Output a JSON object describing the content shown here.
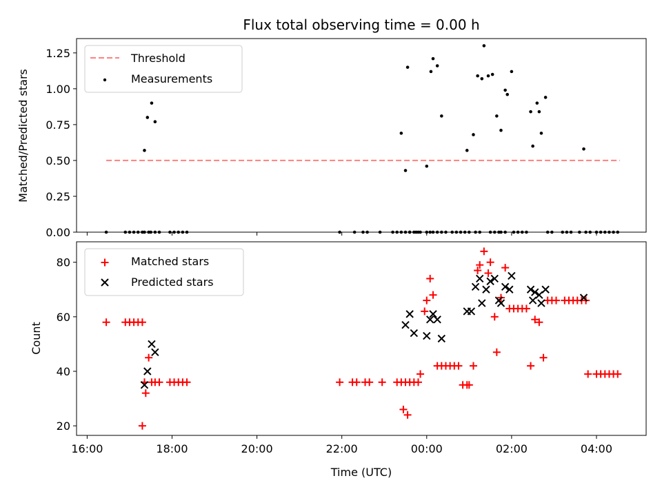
{
  "chart_data": [
    {
      "type": "scatter",
      "title": "Flux total observing time = 0.00 h",
      "xlabel": "",
      "ylabel": "Matched/Predicted stars",
      "xlim": [
        15.75,
        29.17
      ],
      "ylim": [
        0.0,
        1.35
      ],
      "yticks": [
        0.0,
        0.25,
        0.5,
        0.75,
        1.0,
        1.25
      ],
      "ytick_labels": [
        "0.00",
        "0.25",
        "0.50",
        "0.75",
        "1.00",
        "1.25"
      ],
      "xticks": [
        16,
        18,
        20,
        22,
        24,
        26,
        28
      ],
      "xtick_labels": [
        "",
        "",
        "",
        "",
        "",
        "",
        ""
      ],
      "legend_position": "top-left",
      "series": [
        {
          "name": "Threshold",
          "kind": "line",
          "color": "#ff7f7f",
          "style": "dashed",
          "x": [
            16.45,
            28.55
          ],
          "y": [
            0.5,
            0.5
          ]
        },
        {
          "name": "Measurements",
          "kind": "scatter",
          "color": "#000000",
          "marker": "dot",
          "x": [
            16.45,
            16.9,
            17.0,
            17.1,
            17.2,
            17.3,
            17.35,
            17.45,
            17.5,
            17.6,
            17.7,
            17.95,
            18.05,
            18.15,
            18.25,
            18.35,
            21.95,
            22.3,
            22.5,
            22.6,
            22.9,
            23.2,
            23.3,
            23.4,
            23.5,
            23.6,
            23.75,
            23.85,
            23.6,
            23.7,
            23.8,
            24.0,
            24.08,
            24.15,
            24.25,
            24.35,
            24.45,
            24.6,
            24.7,
            24.8,
            24.9,
            25.0,
            25.15,
            25.25,
            25.5,
            25.6,
            25.7,
            25.75,
            25.85,
            26.05,
            26.15,
            26.25,
            26.35,
            26.85,
            26.95,
            27.2,
            27.3,
            27.4,
            27.6,
            27.75,
            27.85,
            28.0,
            28.1,
            28.2,
            28.3,
            28.4,
            28.5,
            23.4,
            23.5,
            23.55,
            24.0,
            24.1,
            24.15,
            24.25,
            24.35,
            24.95,
            25.1,
            25.2,
            25.3,
            25.35,
            25.45,
            25.55,
            25.65,
            25.75,
            25.85,
            25.9,
            26.0,
            26.45,
            26.5,
            26.6,
            26.65,
            26.7,
            26.8,
            17.35,
            17.42,
            17.52,
            17.6,
            27.7
          ],
          "y": [
            0,
            0,
            0,
            0,
            0,
            0,
            0,
            0,
            0,
            0,
            0,
            0,
            0,
            0,
            0,
            0,
            0,
            0,
            0,
            0,
            0,
            0,
            0,
            0,
            0,
            0,
            0,
            0,
            0,
            0,
            0,
            0,
            0,
            0,
            0,
            0,
            0,
            0,
            0,
            0,
            0,
            0,
            0,
            0,
            0,
            0,
            0,
            0,
            0,
            0,
            0,
            0,
            0,
            0,
            0,
            0,
            0,
            0,
            0,
            0,
            0,
            0,
            0,
            0,
            0,
            0,
            0,
            0.69,
            0.43,
            1.15,
            0.46,
            1.12,
            1.21,
            1.16,
            0.81,
            0.57,
            0.68,
            1.09,
            1.07,
            1.3,
            1.09,
            1.1,
            0.81,
            0.71,
            0.99,
            0.96,
            1.12,
            0.84,
            0.6,
            0.9,
            0.84,
            0.69,
            0.94,
            0.57,
            0.8,
            0.9,
            0.77,
            0.58
          ]
        }
      ]
    },
    {
      "type": "scatter",
      "title": "",
      "xlabel": "Time (UTC)",
      "ylabel": "Count",
      "xlim": [
        15.75,
        29.17
      ],
      "ylim": [
        16.5,
        87.5
      ],
      "yticks": [
        20,
        40,
        60,
        80
      ],
      "ytick_labels": [
        "20",
        "40",
        "60",
        "80"
      ],
      "xticks": [
        16,
        18,
        20,
        22,
        24,
        26,
        28
      ],
      "xtick_labels": [
        "16:00",
        "18:00",
        "20:00",
        "22:00",
        "00:00",
        "02:00",
        "04:00"
      ],
      "legend_position": "top-left",
      "series": [
        {
          "name": "Matched stars",
          "kind": "scatter",
          "color": "#ff0000",
          "marker": "plus",
          "x": [
            16.45,
            16.9,
            17.0,
            17.1,
            17.2,
            17.3,
            17.35,
            17.45,
            17.52,
            17.6,
            17.7,
            17.95,
            18.05,
            18.15,
            18.25,
            18.35,
            21.95,
            22.25,
            22.35,
            22.55,
            22.65,
            22.95,
            23.3,
            23.4,
            23.5,
            23.6,
            23.7,
            23.8,
            23.85,
            23.95,
            23.45,
            23.55,
            24.0,
            24.08,
            24.15,
            24.25,
            24.35,
            24.45,
            24.55,
            24.65,
            24.75,
            24.85,
            24.95,
            25.0,
            25.1,
            25.2,
            25.25,
            25.35,
            25.45,
            25.5,
            25.6,
            25.65,
            25.75,
            25.85,
            25.95,
            26.05,
            26.15,
            26.25,
            26.35,
            26.45,
            26.55,
            26.65,
            26.75,
            26.85,
            26.95,
            27.05,
            27.25,
            27.35,
            27.45,
            27.55,
            27.65,
            27.75,
            27.8,
            28.0,
            28.1,
            28.2,
            28.3,
            28.4,
            28.5,
            17.3,
            17.38
          ],
          "y": [
            58,
            58,
            58,
            58,
            58,
            58,
            36,
            45,
            36,
            36,
            36,
            36,
            36,
            36,
            36,
            36,
            36,
            36,
            36,
            36,
            36,
            36,
            36,
            36,
            36,
            36,
            36,
            36,
            39,
            62,
            26,
            24,
            66,
            74,
            68,
            42,
            42,
            42,
            42,
            42,
            42,
            35,
            35,
            35,
            42,
            77,
            79,
            84,
            76,
            80,
            60,
            47,
            67,
            78,
            63,
            63,
            63,
            63,
            63,
            42,
            59,
            58,
            45,
            66,
            66,
            66,
            66,
            66,
            66,
            66,
            66,
            66,
            39,
            39,
            39,
            39,
            39,
            39,
            39,
            20,
            32
          ]
        },
        {
          "name": "Predicted stars",
          "kind": "scatter",
          "color": "#000000",
          "marker": "x",
          "x": [
            17.35,
            17.42,
            17.52,
            17.6,
            23.5,
            23.6,
            23.7,
            24.0,
            24.08,
            24.15,
            24.25,
            24.35,
            24.95,
            25.05,
            25.15,
            25.25,
            25.3,
            25.4,
            25.5,
            25.6,
            25.7,
            25.75,
            25.85,
            25.95,
            26.0,
            26.45,
            26.5,
            26.55,
            26.65,
            26.7,
            26.8,
            27.7
          ],
          "y": [
            35,
            40,
            50,
            47,
            57,
            61,
            54,
            53,
            59,
            61,
            59,
            52,
            62,
            62,
            71,
            74,
            65,
            70,
            73,
            74,
            66,
            65,
            71,
            70,
            75,
            70,
            66,
            69,
            68,
            65,
            70,
            67
          ]
        }
      ]
    }
  ]
}
